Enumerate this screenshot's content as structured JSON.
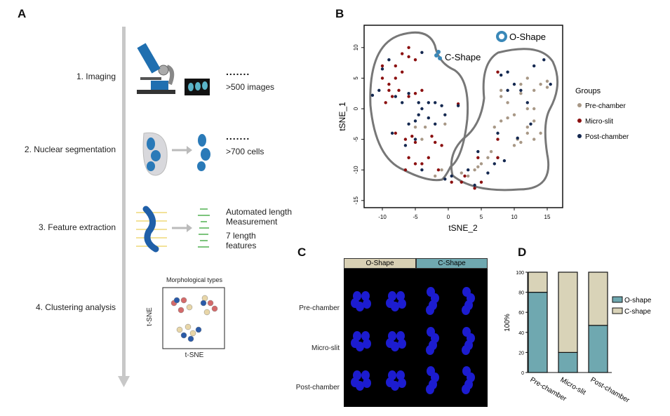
{
  "panels": {
    "a": "A",
    "b": "B",
    "c": "C",
    "d": "D"
  },
  "panel_a": {
    "steps": [
      {
        "label": "1. Imaging",
        "dots": ".......",
        "notes": [
          ">500 images"
        ]
      },
      {
        "label": "2. Nuclear segmentation",
        "dots": ".......",
        "notes": [
          ">700 cells"
        ]
      },
      {
        "label": "3. Feature extraction",
        "notes": [
          "Automated length Measurement",
          "7 length features"
        ]
      },
      {
        "label": "4. Clustering analysis"
      }
    ],
    "inset": {
      "title": "Morphological types",
      "xlabel": "t-SNE",
      "ylabel": "t-SNE"
    }
  },
  "chart_data": [
    {
      "type": "scatter",
      "xlabel": "tSNE_2",
      "ylabel": "tSNE_1",
      "xlim": [
        -13,
        17
      ],
      "ylim": [
        -16,
        13
      ],
      "xticks": [
        -10,
        -5,
        0,
        5,
        10,
        15
      ],
      "yticks": [
        -15,
        -10,
        -5,
        0,
        5,
        10
      ],
      "annotations": [
        "C-Shape",
        "O-Shape"
      ],
      "legend": {
        "title": "Groups",
        "position": "right"
      },
      "series": [
        {
          "name": "Pre-chamber",
          "color": "#a89886",
          "points": [
            [
              8,
              2
            ],
            [
              9,
              1
            ],
            [
              10,
              -1
            ],
            [
              11,
              2.5
            ],
            [
              12,
              0
            ],
            [
              12,
              -3
            ],
            [
              13,
              -2
            ],
            [
              13,
              -5
            ],
            [
              14,
              -4
            ],
            [
              13,
              3
            ],
            [
              14,
              4
            ],
            [
              15,
              3.5
            ],
            [
              11,
              4
            ],
            [
              12,
              5
            ],
            [
              9,
              -1.5
            ],
            [
              8,
              -2
            ],
            [
              7,
              -3
            ],
            [
              7.5,
              -8
            ],
            [
              6,
              -8
            ],
            [
              5,
              -9
            ],
            [
              4,
              -10
            ],
            [
              3,
              -11
            ],
            [
              10,
              -6
            ],
            [
              11,
              -5.5
            ],
            [
              12,
              -4
            ],
            [
              -1,
              -10
            ],
            [
              -2,
              -11
            ],
            [
              -0.5,
              -2.5
            ],
            [
              -5,
              -3
            ],
            [
              -4,
              -5
            ],
            [
              -3.5,
              -3
            ],
            [
              6.5,
              -7
            ],
            [
              8,
              3
            ],
            [
              15,
              4.5
            ],
            [
              13,
              0
            ],
            [
              10.5,
              -5
            ],
            [
              4.5,
              -9.5
            ],
            [
              2,
              -10.5
            ]
          ]
        },
        {
          "name": "Micro-slit",
          "color": "#8b1010",
          "points": [
            [
              -10,
              5
            ],
            [
              -9,
              4
            ],
            [
              -8,
              7
            ],
            [
              -7,
              9
            ],
            [
              -6,
              8.5
            ],
            [
              -5,
              8
            ],
            [
              -6,
              10
            ],
            [
              -9,
              3
            ],
            [
              -8,
              5
            ],
            [
              -7,
              6
            ],
            [
              -10,
              7
            ],
            [
              -9.5,
              1
            ],
            [
              -8.5,
              2
            ],
            [
              -6,
              2
            ],
            [
              -5,
              2.5
            ],
            [
              -8,
              -4
            ],
            [
              -6.5,
              -5
            ],
            [
              -5.5,
              -4.5
            ],
            [
              -6,
              -8
            ],
            [
              -5,
              -9
            ],
            [
              -4,
              -9
            ],
            [
              -3,
              -8
            ],
            [
              -2,
              -5.5
            ],
            [
              -1,
              -6
            ],
            [
              -6.5,
              -10
            ],
            [
              -1.5,
              -10
            ],
            [
              1.5,
              0.8
            ],
            [
              7.5,
              6
            ],
            [
              7.5,
              -5
            ],
            [
              7.5,
              -8
            ],
            [
              4,
              -13
            ],
            [
              5,
              -12
            ],
            [
              2,
              -12
            ],
            [
              2.5,
              -11
            ],
            [
              0.5,
              -12
            ],
            [
              4.5,
              -8
            ],
            [
              -7.5,
              3
            ],
            [
              -4,
              3
            ],
            [
              -2.5,
              -4.5
            ],
            [
              -5,
              -5.5
            ]
          ]
        },
        {
          "name": "Post-chamber",
          "color": "#142850",
          "points": [
            [
              -11.5,
              2.2
            ],
            [
              -10.5,
              3
            ],
            [
              -10,
              6.5
            ],
            [
              -9,
              8
            ],
            [
              -4,
              9.2
            ],
            [
              -8,
              2
            ],
            [
              -6,
              2.5
            ],
            [
              -7,
              1
            ],
            [
              -4.5,
              1
            ],
            [
              -4,
              0
            ],
            [
              -3,
              1
            ],
            [
              -2,
              1
            ],
            [
              -1,
              0.5
            ],
            [
              -4.5,
              -1
            ],
            [
              -5,
              -2
            ],
            [
              -3,
              -1.5
            ],
            [
              -2,
              -2.5
            ],
            [
              -6,
              -2.5
            ],
            [
              -6.5,
              -6
            ],
            [
              -5,
              -5
            ],
            [
              -4,
              -10
            ],
            [
              -0.5,
              -11.5
            ],
            [
              0.5,
              -11
            ],
            [
              1.5,
              0.5
            ],
            [
              3,
              -10
            ],
            [
              4,
              -12.5
            ],
            [
              4.5,
              -7
            ],
            [
              6,
              -10.5
            ],
            [
              7,
              -9
            ],
            [
              8.5,
              -8.5
            ],
            [
              7.5,
              -4
            ],
            [
              8,
              5.5
            ],
            [
              9,
              6
            ],
            [
              10,
              4
            ],
            [
              11,
              3
            ],
            [
              12,
              1
            ],
            [
              13,
              7
            ],
            [
              14.5,
              8
            ],
            [
              15.5,
              4
            ],
            [
              9,
              3
            ],
            [
              12.5,
              -2.5
            ],
            [
              10.5,
              -4.8
            ],
            [
              -8.5,
              -4
            ],
            [
              -0.5,
              -1
            ]
          ]
        }
      ]
    },
    {
      "type": "bar",
      "stacked": true,
      "categories": [
        "Pre-chamber",
        "Micro-slit",
        "Post-chamber"
      ],
      "ylabel": "100%",
      "ylim": [
        0,
        100
      ],
      "yticks": [
        0,
        20,
        40,
        60,
        80,
        100
      ],
      "legend": {
        "position": "right"
      },
      "series": [
        {
          "name": "O-shape",
          "color": "#6fa8b0",
          "values": [
            80,
            20,
            47
          ]
        },
        {
          "name": "C-shape",
          "color": "#d9d3b8",
          "values": [
            20,
            80,
            53
          ]
        }
      ]
    }
  ],
  "panel_c": {
    "columns": [
      "O-Shape",
      "C-Shape"
    ],
    "rows": [
      "Pre-chamber",
      "Micro-slit",
      "Post-chamber"
    ],
    "header_colors": [
      "#d8d0b4",
      "#6fa8b0"
    ]
  }
}
